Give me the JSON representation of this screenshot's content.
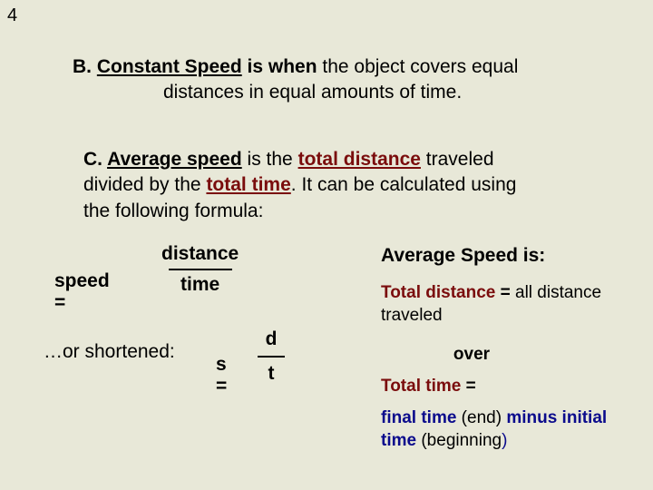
{
  "pageNumber": "4",
  "sectionB": {
    "prefix": "B. ",
    "termUnderlined": "Constant Speed",
    "boldAfter": " is when ",
    "rest1": "the object covers equal",
    "line2": "distances in equal amounts of time."
  },
  "sectionC": {
    "prefix": "C. ",
    "termUnderlined": "Average speed",
    "t1": " is the ",
    "totalDistance": "total distance",
    "t2": " traveled divided by the ",
    "totalTime": "total time",
    "t3": ". It can be calculated using the following formula:"
  },
  "formula1": {
    "lhs": "speed =",
    "numerator": "distance",
    "denominator": "time"
  },
  "shortenedLabel": "…or shortened:",
  "formula2": {
    "lhs": "s =",
    "numerator": "d",
    "denominator": "t"
  },
  "avg": {
    "title": "Average Speed is:",
    "tdLabel": "Total distance",
    "tdEq": " = ",
    "tdRest": "all distance traveled",
    "over": "over",
    "ttLabel": "Total time",
    "ttEq": " =",
    "finalTime": "final time",
    "endParen": " (end) ",
    "minus": "minus",
    "initialTime": " initial time",
    "beginParen": " (beginning",
    "closeParen": ")"
  },
  "colors": {
    "background": "#e8e8d8",
    "darkred": "#7a0c0c",
    "navy": "#0b0b8c",
    "text": "#000000"
  }
}
